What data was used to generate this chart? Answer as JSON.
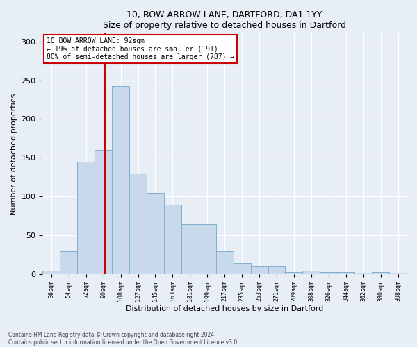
{
  "title1": "10, BOW ARROW LANE, DARTFORD, DA1 1YY",
  "title2": "Size of property relative to detached houses in Dartford",
  "xlabel": "Distribution of detached houses by size in Dartford",
  "ylabel": "Number of detached properties",
  "footnote1": "Contains HM Land Registry data © Crown copyright and database right 2024.",
  "footnote2": "Contains public sector information licensed under the Open Government Licence v3.0.",
  "annotation_line1": "10 BOW ARROW LANE: 92sqm",
  "annotation_line2": "← 19% of detached houses are smaller (191)",
  "annotation_line3": "80% of semi-detached houses are larger (787) →",
  "bar_color": "#c9d9ec",
  "bar_edge_color": "#7fafd0",
  "vline_color": "#cc0000",
  "background_color": "#e8eef5",
  "annotation_box_color": "#ffffff",
  "annotation_box_edge": "#cc0000",
  "bin_labels": [
    "36sqm",
    "54sqm",
    "72sqm",
    "90sqm",
    "108sqm",
    "127sqm",
    "145sqm",
    "163sqm",
    "181sqm",
    "199sqm",
    "217sqm",
    "235sqm",
    "253sqm",
    "271sqm",
    "289sqm",
    "308sqm",
    "326sqm",
    "344sqm",
    "362sqm",
    "380sqm",
    "398sqm"
  ],
  "bar_heights": [
    5,
    30,
    145,
    160,
    242,
    130,
    105,
    90,
    65,
    65,
    30,
    15,
    10,
    10,
    3,
    5,
    3,
    3,
    2,
    3,
    2
  ],
  "bin_left_edges": [
    27,
    45,
    63,
    81,
    99,
    117,
    135,
    153,
    171,
    189,
    207,
    225,
    243,
    261,
    279,
    297,
    315,
    333,
    351,
    369,
    387
  ],
  "bin_right_edges": [
    45,
    63,
    81,
    99,
    117,
    135,
    153,
    171,
    189,
    207,
    225,
    243,
    261,
    279,
    297,
    315,
    333,
    351,
    369,
    387,
    405
  ],
  "tick_positions": [
    36,
    54,
    72,
    90,
    108,
    126,
    144,
    162,
    180,
    198,
    216,
    234,
    252,
    270,
    288,
    306,
    324,
    342,
    360,
    378,
    396
  ],
  "vline_x": 92,
  "ylim": [
    0,
    310
  ],
  "xlim": [
    27,
    405
  ]
}
